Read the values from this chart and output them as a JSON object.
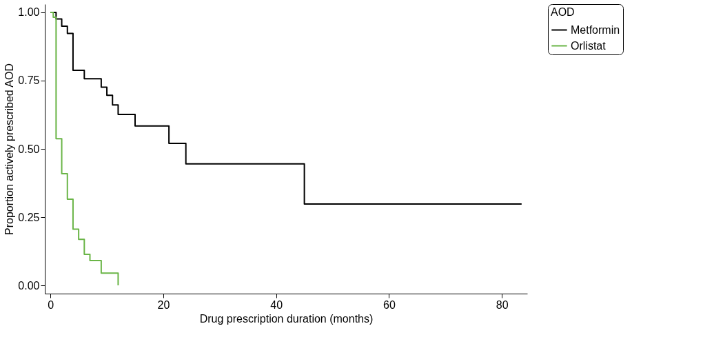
{
  "chart_data": {
    "type": "step",
    "xlabel": "Drug prescription duration (months)",
    "ylabel": "Proportion actively prescribed AOD",
    "legend_title": "AOD",
    "legend": "right",
    "grid": false,
    "xlim": [
      -1,
      84.5
    ],
    "ylim": [
      -0.03,
      1.03
    ],
    "xticks": [
      0,
      20,
      40,
      60,
      80
    ],
    "yticks": [
      {
        "value": 0,
        "label": "0.00"
      },
      {
        "value": 0.25,
        "label": "0.25"
      },
      {
        "value": 0.5,
        "label": "0.50"
      },
      {
        "value": 0.75,
        "label": "0.75"
      },
      {
        "value": 1,
        "label": "1.00"
      }
    ],
    "series": [
      {
        "name": "Metformin",
        "color": "#000000",
        "x": [
          0,
          1,
          2,
          3,
          4,
          6,
          9,
          10,
          11,
          12,
          15,
          21,
          24,
          45,
          83.5
        ],
        "values": [
          1,
          0.976,
          0.949,
          0.923,
          0.788,
          0.757,
          0.726,
          0.696,
          0.661,
          0.626,
          0.584,
          0.52,
          0.445,
          0.298,
          0.298
        ]
      },
      {
        "name": "Orlistat",
        "color": "#6ab547",
        "x": [
          0,
          0.5,
          1,
          2,
          3,
          4,
          5,
          6,
          7,
          9,
          12
        ],
        "values": [
          1,
          0.982,
          0.537,
          0.409,
          0.316,
          0.206,
          0.169,
          0.114,
          0.091,
          0.045,
          0
        ]
      }
    ]
  }
}
